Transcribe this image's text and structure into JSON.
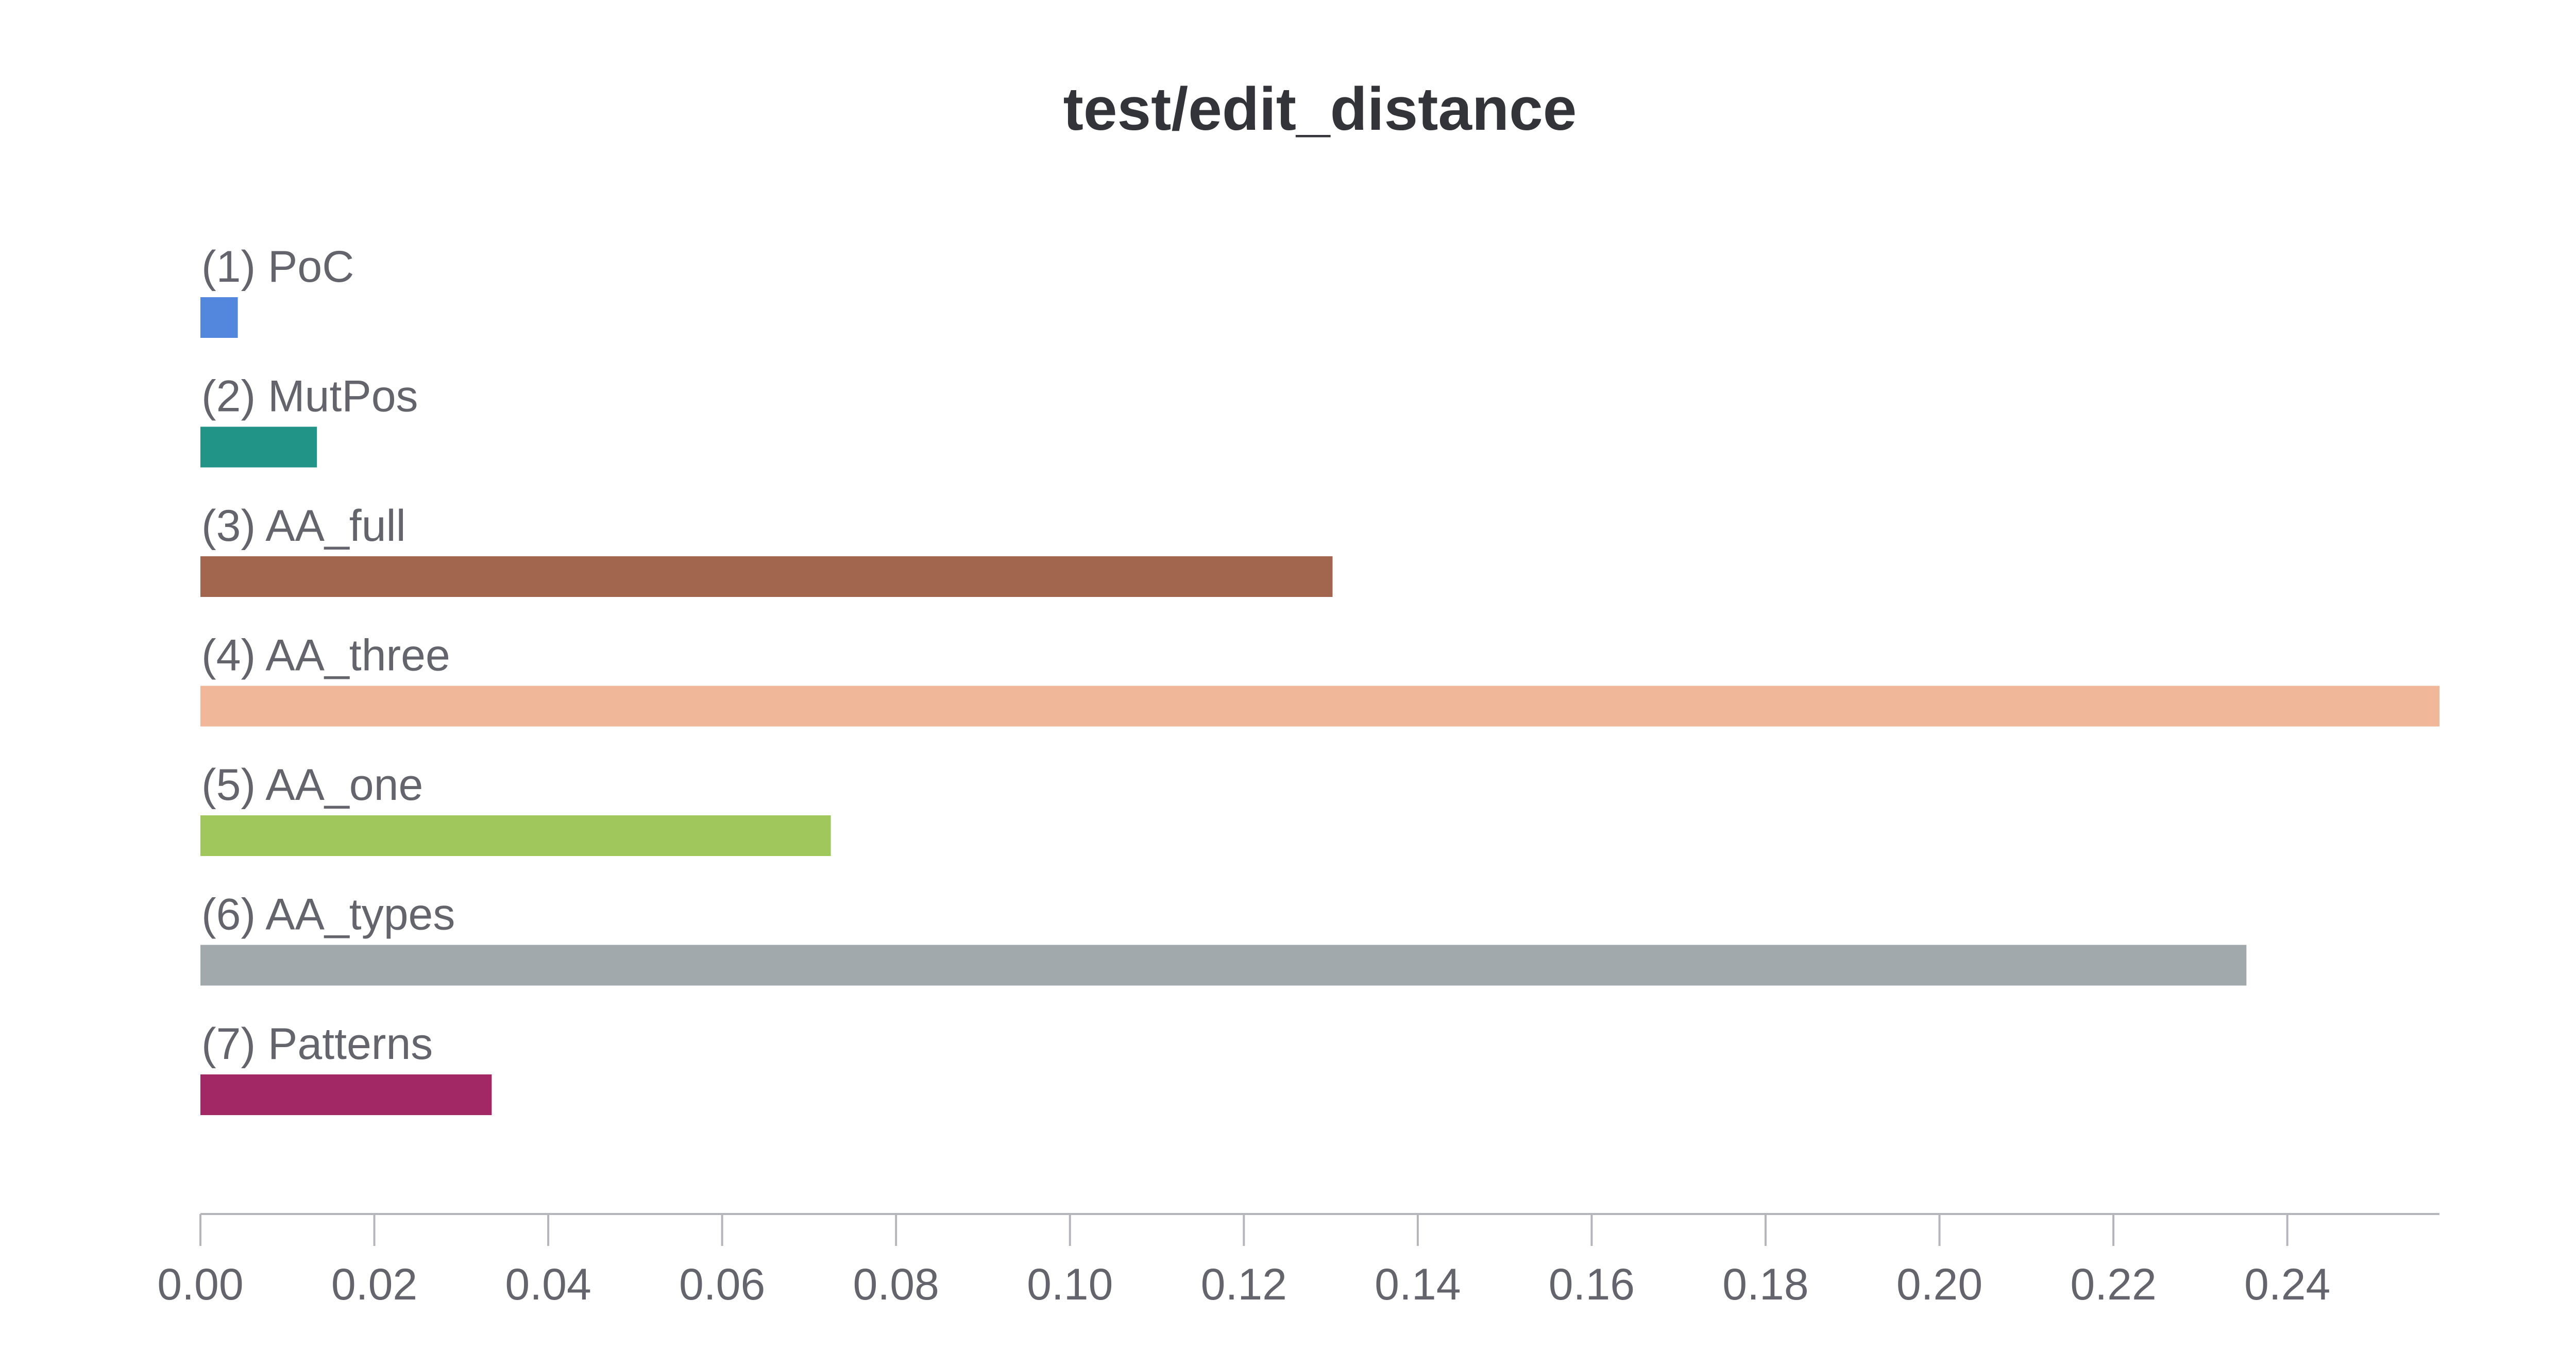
{
  "chart_data": {
    "type": "bar",
    "orientation": "horizontal",
    "title": "test/edit_distance",
    "xlabel": "",
    "ylabel": "",
    "categories": [
      "(1) PoC",
      "(2) MutPos",
      "(3) AA_full",
      "(4) AA_three",
      "(5) AA_one",
      "(6) AA_types",
      "(7) Patterns"
    ],
    "values": [
      0.0043,
      0.0134,
      0.1302,
      0.2575,
      0.0725,
      0.2353,
      0.0335
    ],
    "colors": [
      "#5387dd",
      "#229487",
      "#a1664d",
      "#f0b899",
      "#a0c75c",
      "#a2a9ad",
      "#a12864"
    ],
    "xlim": [
      0,
      0.2575
    ],
    "xticks": [
      0.0,
      0.02,
      0.04,
      0.06,
      0.08,
      0.1,
      0.12,
      0.14,
      0.16,
      0.18,
      0.2,
      0.22,
      0.24
    ],
    "xtick_labels": [
      "0.00",
      "0.02",
      "0.04",
      "0.06",
      "0.08",
      "0.10",
      "0.12",
      "0.14",
      "0.16",
      "0.18",
      "0.20",
      "0.22",
      "0.24"
    ],
    "grid": false,
    "legend": "none"
  }
}
